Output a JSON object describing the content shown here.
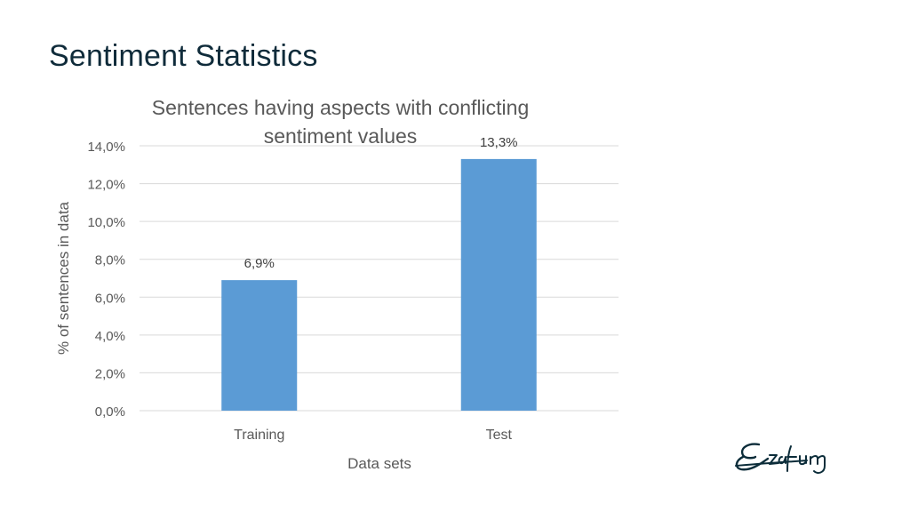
{
  "slide": {
    "title": "Sentiment Statistics"
  },
  "colors": {
    "bar": "#5b9bd5",
    "grid": "#d9d9d9",
    "text": "#595959",
    "title": "#0f2b3a",
    "logo": "#0c2d3a"
  },
  "logo": {
    "icon": "erasmus-signature-logo"
  },
  "chart_data": {
    "type": "bar",
    "title_lines": [
      "Sentences having aspects with conflicting",
      "sentiment values"
    ],
    "xlabel": "Data sets",
    "ylabel": "% of sentences in data",
    "categories": [
      "Training",
      "Test"
    ],
    "values": [
      6.9,
      13.3
    ],
    "data_labels": [
      "6,9%",
      "13,3%"
    ],
    "y_ticks": [
      "0,0%",
      "2,0%",
      "4,0%",
      "6,0%",
      "8,0%",
      "10,0%",
      "12,0%",
      "14,0%"
    ],
    "ylim": [
      0,
      14
    ],
    "grid": true,
    "legend": "none"
  }
}
